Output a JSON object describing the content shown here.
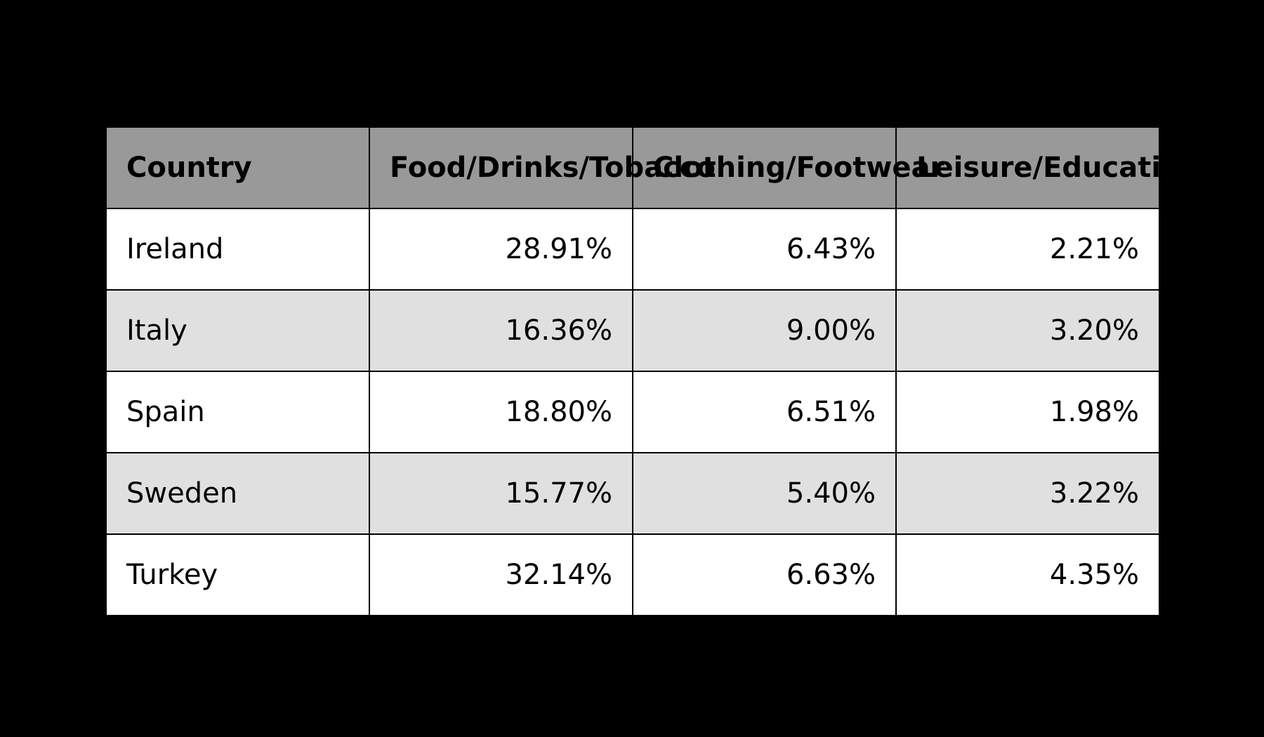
{
  "chart_data": {
    "type": "table",
    "columns": [
      "Country",
      "Food/Drinks/Tobacco",
      "Clothing/Footwear",
      "Leisure/Education"
    ],
    "rows": [
      [
        "Ireland",
        "28.91%",
        "6.43%",
        "2.21%"
      ],
      [
        "Italy",
        "16.36%",
        "9.00%",
        "3.20%"
      ],
      [
        "Spain",
        "18.80%",
        "6.51%",
        "1.98%"
      ],
      [
        "Sweden",
        "15.77%",
        "5.40%",
        "3.22%"
      ],
      [
        "Turkey",
        "32.14%",
        "6.63%",
        "4.35%"
      ]
    ]
  },
  "colors": {
    "background": "#000000",
    "header_fill": "#999999",
    "row_fill_odd": "#ffffff",
    "row_fill_even": "#e0e0e0",
    "border": "#000000"
  }
}
